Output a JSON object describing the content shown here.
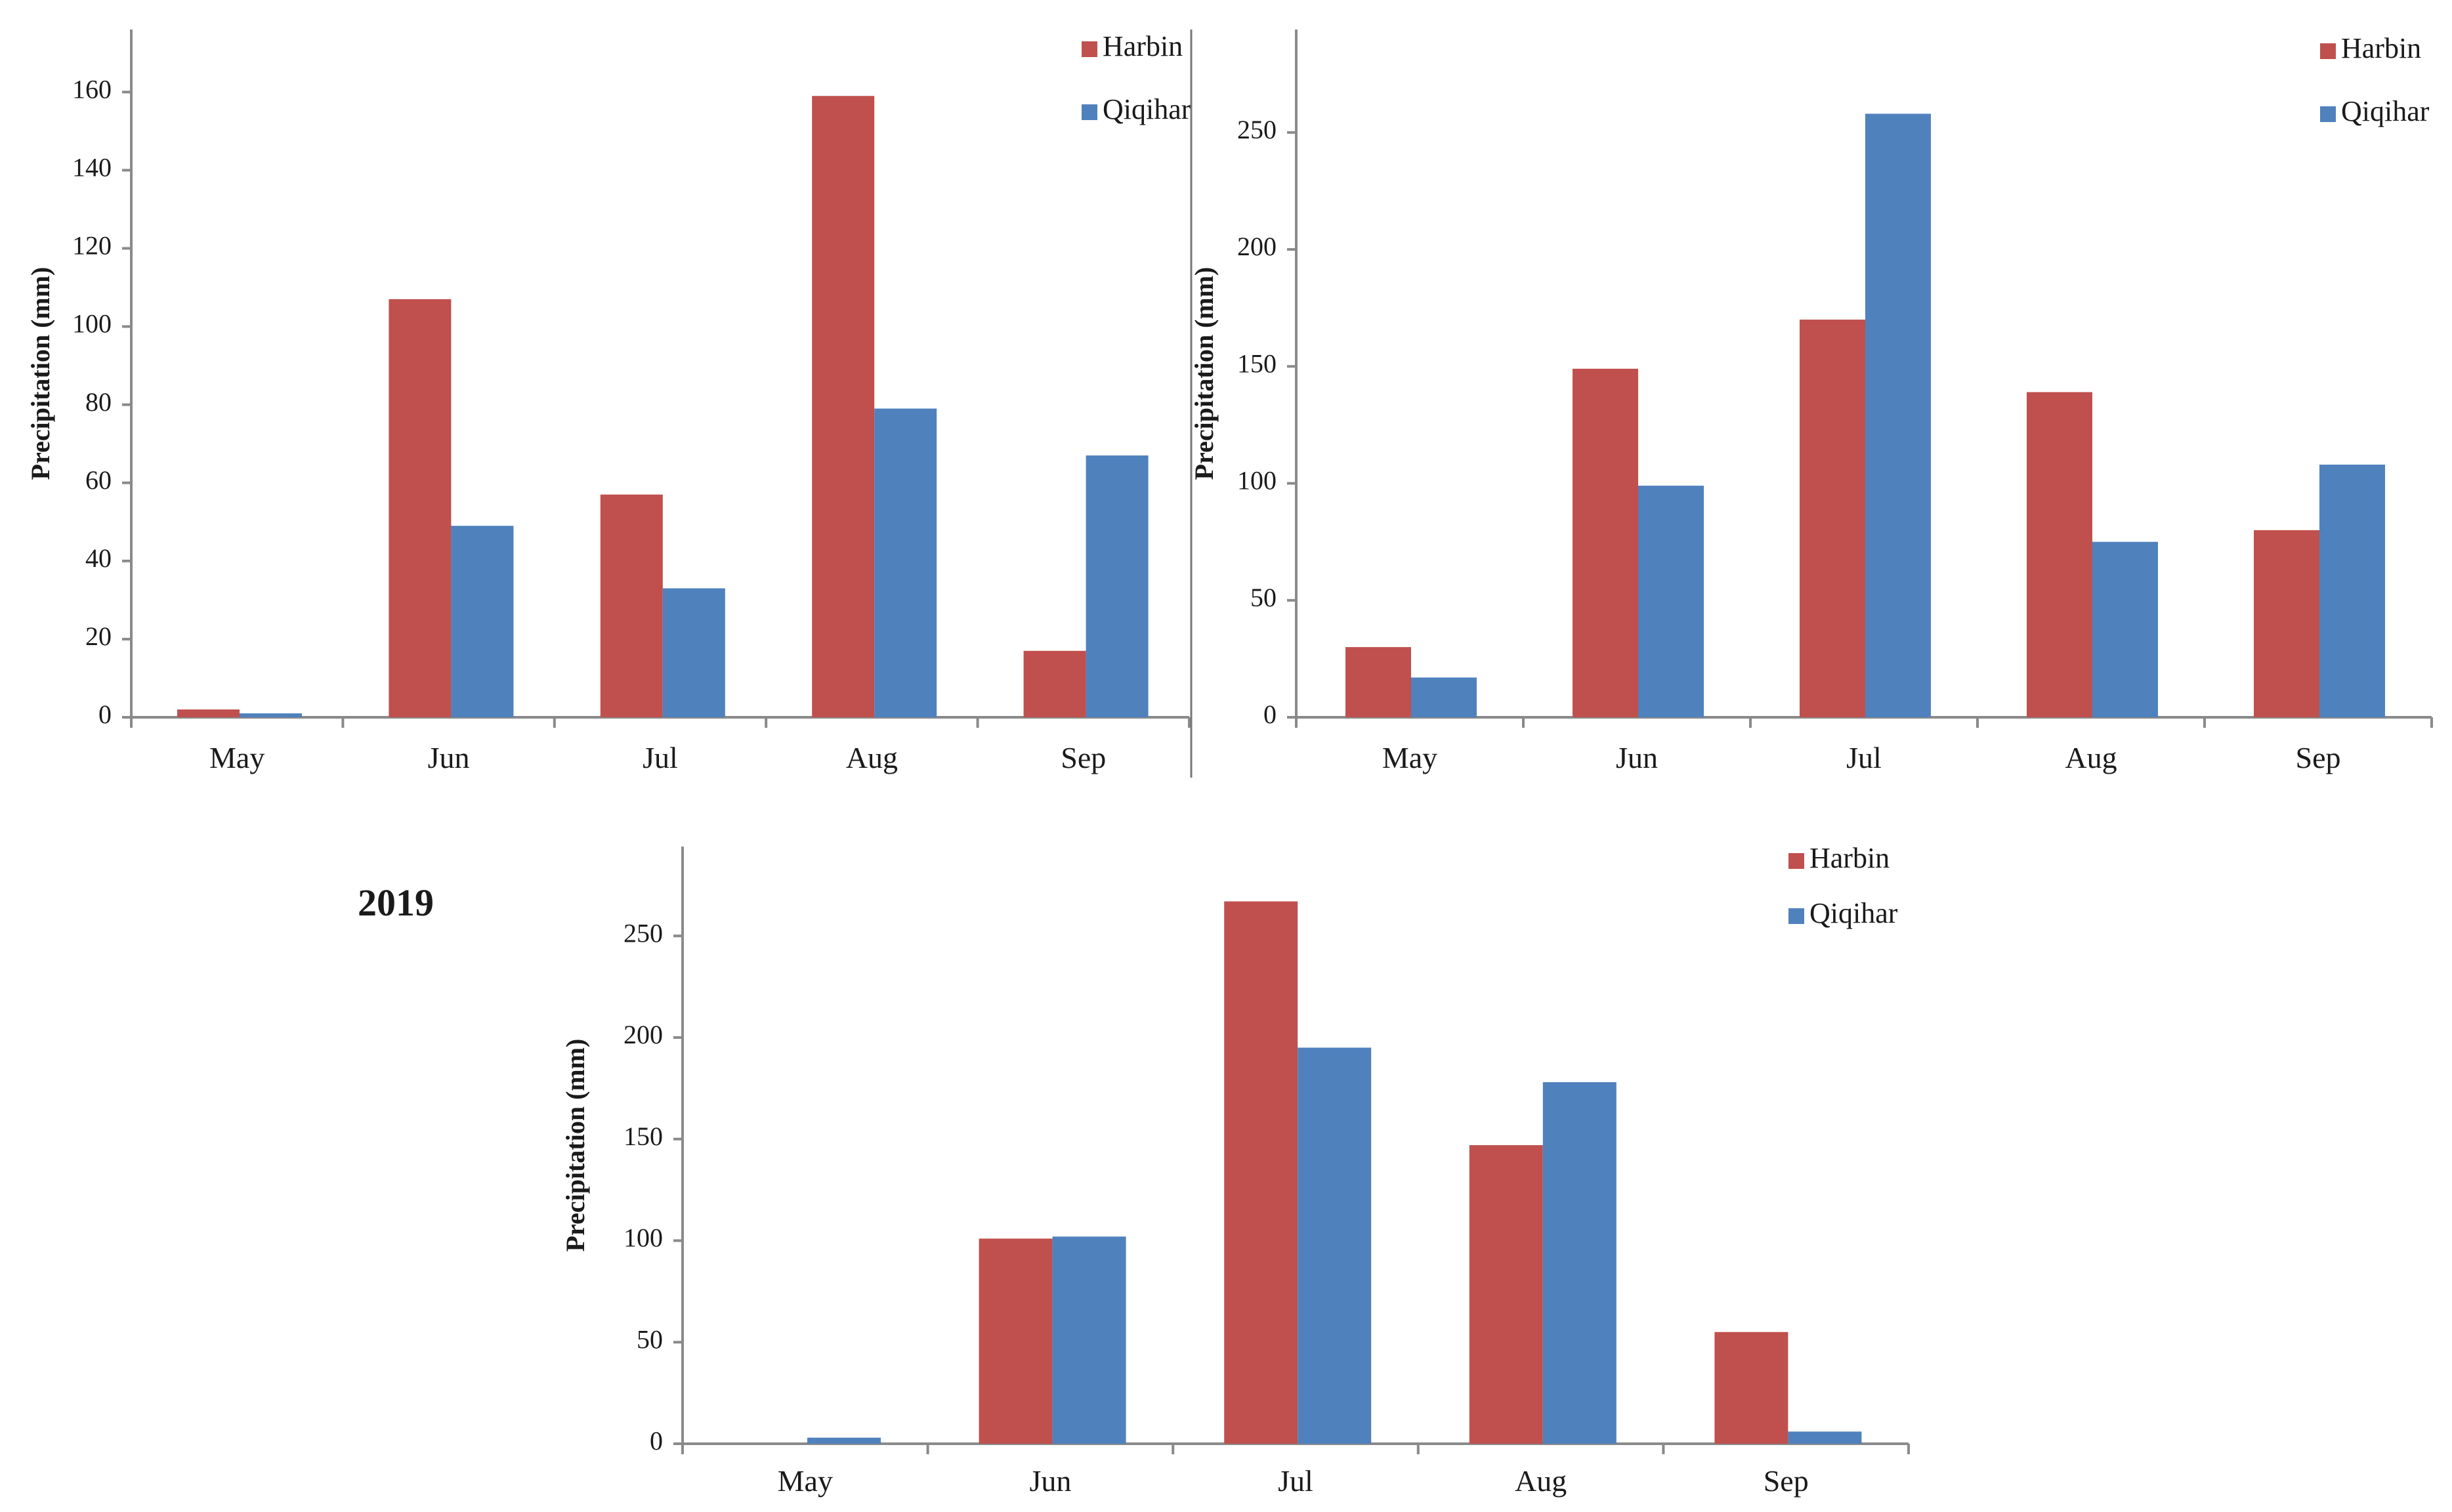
{
  "chart_data": [
    {
      "type": "bar",
      "title": "",
      "xlabel": "",
      "ylabel": "Precipitation (mm)",
      "categories": [
        "May",
        "Jun",
        "Jul",
        "Aug",
        "Sep"
      ],
      "ylim": [
        0,
        176
      ],
      "yticks": [
        0,
        20,
        40,
        60,
        80,
        100,
        120,
        140,
        160
      ],
      "legend_position": "top-right",
      "series": [
        {
          "name": "Harbin",
          "color": "#c0504d",
          "values": [
            2,
            107,
            57,
            159,
            17
          ]
        },
        {
          "name": "Qiqihar",
          "color": "#4f81bd",
          "values": [
            1,
            49,
            33,
            79,
            67
          ]
        }
      ]
    },
    {
      "type": "bar",
      "title": "",
      "xlabel": "",
      "ylabel": "Precipitation (mm)",
      "categories": [
        "May",
        "Jun",
        "Jul",
        "Aug",
        "Sep"
      ],
      "ylim": [
        0,
        294
      ],
      "yticks": [
        0,
        50,
        100,
        150,
        200,
        250
      ],
      "legend_position": "top-right",
      "series": [
        {
          "name": "Harbin",
          "color": "#c0504d",
          "values": [
            30,
            149,
            170,
            139,
            80
          ]
        },
        {
          "name": "Qiqihar",
          "color": "#4f81bd",
          "values": [
            17,
            99,
            258,
            75,
            108
          ]
        }
      ]
    },
    {
      "type": "bar",
      "title": "2019",
      "xlabel": "",
      "ylabel": "Precipitation (mm)",
      "categories": [
        "May",
        "Jun",
        "Jul",
        "Aug",
        "Sep"
      ],
      "ylim": [
        0,
        294
      ],
      "yticks": [
        0,
        50,
        100,
        150,
        200,
        250
      ],
      "legend_position": "top-right",
      "series": [
        {
          "name": "Harbin",
          "color": "#c0504d",
          "values": [
            0,
            101,
            267,
            147,
            55
          ]
        },
        {
          "name": "Qiqihar",
          "color": "#4f81bd",
          "values": [
            3,
            102,
            195,
            178,
            6
          ]
        }
      ]
    }
  ]
}
